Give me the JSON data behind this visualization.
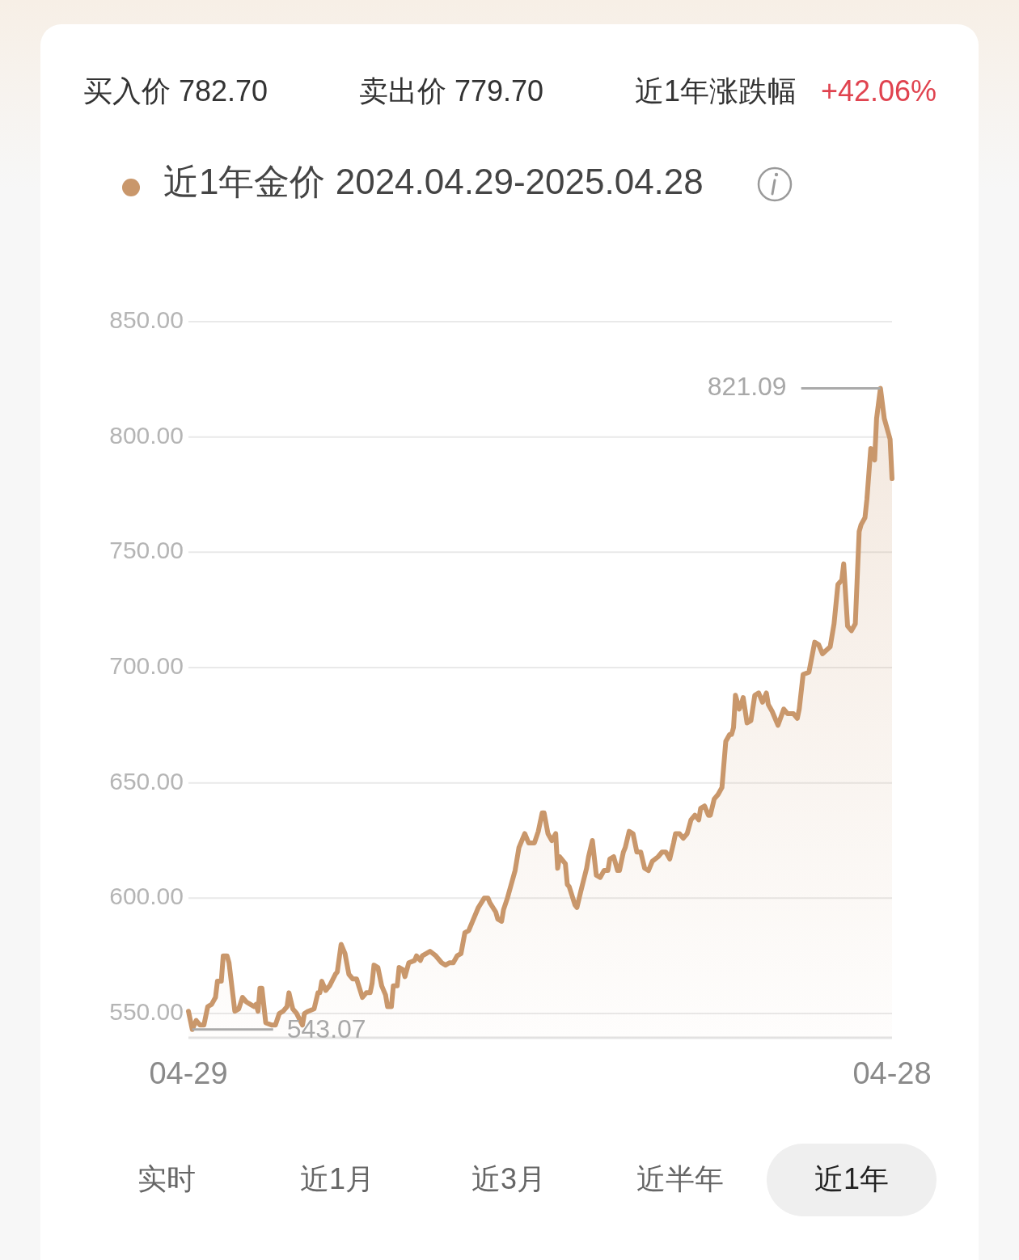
{
  "chart_data": {
    "type": "area",
    "x": [
      "2024-04-29",
      "2024-05-01",
      "2024-05-03",
      "2024-05-05",
      "2024-05-07",
      "2024-05-09",
      "2024-05-11",
      "2024-05-13",
      "2024-05-14",
      "2024-05-16",
      "2024-05-17",
      "2024-05-19",
      "2024-05-20",
      "2024-05-22",
      "2024-05-23",
      "2024-05-25",
      "2024-05-27",
      "2024-05-29",
      "2024-05-31",
      "2024-06-02",
      "2024-06-03",
      "2024-06-04",
      "2024-06-05",
      "2024-06-06",
      "2024-06-08",
      "2024-06-11",
      "2024-06-13",
      "2024-06-15",
      "2024-06-17",
      "2024-06-19",
      "2024-06-20",
      "2024-06-22",
      "2024-06-24",
      "2024-06-27",
      "2024-06-28",
      "2024-06-30",
      "2024-07-03",
      "2024-07-05",
      "2024-07-06",
      "2024-07-07",
      "2024-07-09",
      "2024-07-11",
      "2024-07-14",
      "2024-07-15",
      "2024-07-17",
      "2024-07-19",
      "2024-07-21",
      "2024-07-23",
      "2024-07-25",
      "2024-07-28",
      "2024-07-30",
      "2024-08-01",
      "2024-08-02",
      "2024-08-03",
      "2024-08-05",
      "2024-08-07",
      "2024-08-09",
      "2024-08-10",
      "2024-08-12",
      "2024-08-13",
      "2024-08-15",
      "2024-08-16",
      "2024-08-18",
      "2024-08-19",
      "2024-08-21",
      "2024-08-24",
      "2024-08-25",
      "2024-08-27",
      "2024-08-28",
      "2024-08-30",
      "2024-09-01",
      "2024-09-04",
      "2024-09-07",
      "2024-09-09",
      "2024-09-11",
      "2024-09-13",
      "2024-09-15",
      "2024-09-17",
      "2024-09-19",
      "2024-09-21",
      "2024-09-23",
      "2024-09-26",
      "2024-09-29",
      "2024-10-01",
      "2024-10-02",
      "2024-10-05",
      "2024-10-06",
      "2024-10-08",
      "2024-10-09",
      "2024-10-11",
      "2024-10-13",
      "2024-10-15",
      "2024-10-17",
      "2024-10-20",
      "2024-10-22",
      "2024-10-25",
      "2024-10-27",
      "2024-10-29",
      "2024-10-30",
      "2024-11-01",
      "2024-11-03",
      "2024-11-05",
      "2024-11-06",
      "2024-11-07",
      "2024-11-10",
      "2024-11-11",
      "2024-11-12",
      "2024-11-15",
      "2024-11-16",
      "2024-11-18",
      "2024-11-21",
      "2024-11-22",
      "2024-11-24",
      "2024-11-26",
      "2024-11-28",
      "2024-11-30",
      "2024-12-02",
      "2024-12-03",
      "2024-12-05",
      "2024-12-07",
      "2024-12-08",
      "2024-12-10",
      "2024-12-11",
      "2024-12-13",
      "2024-12-15",
      "2024-12-17",
      "2024-12-19",
      "2024-12-21",
      "2024-12-23",
      "2024-12-25",
      "2024-12-28",
      "2024-12-30",
      "2025-01-01",
      "2025-01-03",
      "2025-01-05",
      "2025-01-06",
      "2025-01-08",
      "2025-01-10",
      "2025-01-12",
      "2025-01-14",
      "2025-01-16",
      "2025-01-18",
      "2025-01-19",
      "2025-01-21",
      "2025-01-23",
      "2025-01-24",
      "2025-01-26",
      "2025-01-28",
      "2025-01-30",
      "2025-02-01",
      "2025-02-03",
      "2025-02-04",
      "2025-02-05",
      "2025-02-06",
      "2025-02-08",
      "2025-02-09",
      "2025-02-10",
      "2025-02-12",
      "2025-02-14",
      "2025-02-16",
      "2025-02-18",
      "2025-02-20",
      "2025-02-22",
      "2025-02-23",
      "2025-02-25",
      "2025-02-28",
      "2025-03-03",
      "2025-03-05",
      "2025-03-08",
      "2025-03-10",
      "2025-03-11",
      "2025-03-13",
      "2025-03-16",
      "2025-03-19",
      "2025-03-21",
      "2025-03-23",
      "2025-03-27",
      "2025-03-29",
      "2025-03-31",
      "2025-04-02",
      "2025-04-03",
      "2025-04-05",
      "2025-04-07",
      "2025-04-09",
      "2025-04-11",
      "2025-04-12",
      "2025-04-14",
      "2025-04-15",
      "2025-04-17",
      "2025-04-19",
      "2025-04-20",
      "2025-04-22",
      "2025-04-24",
      "2025-04-26",
      "2025-04-27",
      "2025-04-28"
    ],
    "series": [
      {
        "name": "近1年金价 2024.04.29-2025.04.28",
        "color": "#c9976b",
        "values": [
          551,
          543.07,
          547,
          545,
          545,
          553,
          554,
          557,
          564,
          564,
          575,
          575,
          572,
          558,
          551,
          552,
          557,
          555,
          554,
          553,
          554,
          551,
          561,
          561,
          546,
          545,
          545,
          550,
          551,
          553,
          559,
          552,
          550,
          545,
          550,
          551,
          552,
          559,
          559,
          564,
          560,
          562,
          567,
          568,
          580,
          576,
          567,
          565,
          565,
          557,
          559,
          559,
          563,
          571,
          570,
          562,
          558,
          553,
          553,
          562,
          562,
          570,
          569,
          566,
          572,
          573,
          575,
          573,
          575,
          576,
          577,
          575,
          572,
          571,
          572,
          572,
          575,
          576,
          585,
          586,
          590,
          596,
          600,
          600,
          598,
          594,
          591,
          590,
          595,
          600,
          606,
          612,
          622,
          628,
          624,
          624,
          629,
          637,
          637,
          628,
          625,
          628,
          613,
          618,
          615,
          606,
          605,
          597,
          596,
          603,
          613,
          618,
          625,
          610,
          609,
          612,
          612,
          617,
          618,
          612,
          612,
          620,
          622,
          629,
          628,
          620,
          620,
          613,
          612,
          616,
          618,
          620,
          620,
          617,
          624,
          628,
          628,
          626,
          628,
          634,
          636,
          634,
          639,
          640,
          636,
          636,
          643,
          645,
          648,
          668,
          671,
          671,
          674,
          688,
          682,
          684,
          687,
          676,
          677,
          688,
          689,
          685,
          689,
          684,
          681,
          675,
          682,
          680,
          680,
          678,
          682,
          697,
          698,
          711,
          710,
          706,
          709,
          719,
          736,
          738,
          745,
          718,
          716,
          719,
          759,
          762,
          765,
          773,
          795,
          790,
          808,
          821.09,
          808,
          802,
          799,
          782
        ]
      }
    ],
    "xlim": [
      "2024-04-29",
      "2025-04-28"
    ],
    "xticks": [
      {
        "value": "2024-04-29",
        "label": "04-29"
      },
      {
        "value": "2025-04-28",
        "label": "04-28"
      }
    ],
    "ylim": [
      539.5,
      850
    ],
    "yticks": [
      {
        "value": 550,
        "label": "550.00"
      },
      {
        "value": 600,
        "label": "600.00"
      },
      {
        "value": 650,
        "label": "650.00"
      },
      {
        "value": 700,
        "label": "700.00"
      },
      {
        "value": 750,
        "label": "750.00"
      },
      {
        "value": 800,
        "label": "800.00"
      },
      {
        "value": 850,
        "label": "850.00"
      }
    ],
    "grid": "y",
    "legend": "top left",
    "annotations": [
      "买入价 782.70",
      "卖出价 779.70",
      "近1年涨跌幅",
      "+42.06%",
      "821.09",
      "543.07",
      "实时",
      "近1月",
      "近3月",
      "近半年",
      "近1年"
    ]
  }
}
